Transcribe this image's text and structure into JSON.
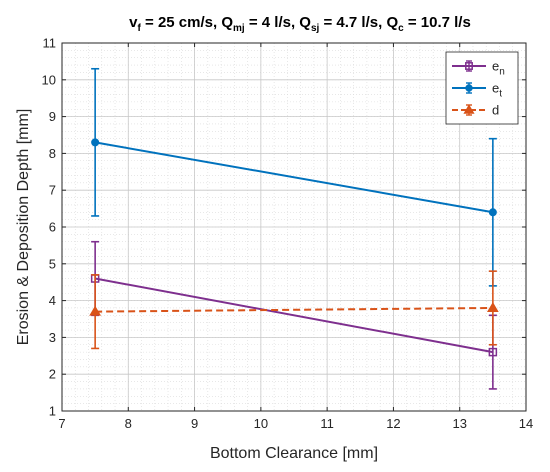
{
  "chart_data": {
    "type": "line",
    "title": {
      "v": "v",
      "v_sub": "f",
      "v_val": " = 25 cm/s, ",
      "q1": "Q",
      "q1_sub": "mj",
      "q1_val": " = 4 l/s, ",
      "q2": "Q",
      "q2_sub": "sj",
      "q2_val": " = 4.7 l/s, ",
      "q3": "Q",
      "q3_sub": "c",
      "q3_val": " = 10.7 l/s"
    },
    "xlabel": "Bottom Clearance [mm]",
    "ylabel": "Erosion & Deposition Depth [mm]",
    "xlim": [
      7,
      14
    ],
    "ylim": [
      1,
      11
    ],
    "xticks": [
      7,
      8,
      9,
      10,
      11,
      12,
      13,
      14
    ],
    "yticks": [
      1,
      2,
      3,
      4,
      5,
      6,
      7,
      8,
      9,
      10,
      11
    ],
    "grid": true,
    "minor_grid": true,
    "legend_position": "top-right",
    "series": [
      {
        "id": "en",
        "name_base": "e",
        "name_sub": "n",
        "color": "#7E2F8E",
        "marker": "square",
        "dash": "solid",
        "x": [
          7.5,
          13.5
        ],
        "y": [
          4.6,
          2.6
        ],
        "err": [
          1.0,
          1.0
        ]
      },
      {
        "id": "et",
        "name_base": "e",
        "name_sub": "t",
        "color": "#0072BD",
        "marker": "circle",
        "dash": "solid",
        "x": [
          7.5,
          13.5
        ],
        "y": [
          8.3,
          6.4
        ],
        "err": [
          2.0,
          2.0
        ]
      },
      {
        "id": "d",
        "name_base": "d",
        "name_sub": "",
        "color": "#D95319",
        "marker": "triangle",
        "dash": "dashed",
        "x": [
          7.5,
          13.5
        ],
        "y": [
          3.7,
          3.8
        ],
        "err": [
          1.0,
          1.0
        ]
      }
    ]
  }
}
